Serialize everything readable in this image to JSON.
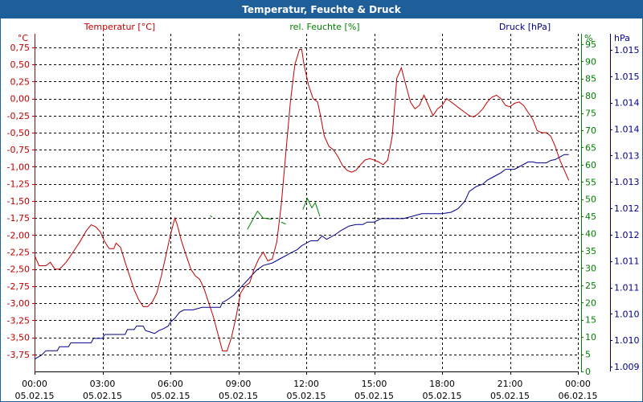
{
  "window": {
    "title": "Temperatur, Feuchte & Druck"
  },
  "chart_data": {
    "type": "line",
    "title": "Temperatur, Feuchte & Druck",
    "colors": {
      "temperature": "#c00000",
      "humidity": "#008000",
      "pressure": "#00008b",
      "grid": "#000000"
    },
    "series_labels": {
      "temperature": "Temperatur [°C]",
      "humidity": "rel. Feuchte [%]",
      "pressure": "Druck [hPa]"
    },
    "axes": {
      "left": {
        "unit": "°C",
        "min": -4.0,
        "max": 0.95,
        "ticks": [
          "0,75",
          "0,50",
          "0,25",
          "0,00",
          "-0,25",
          "-0,50",
          "-0,75",
          "-1,00",
          "-1,25",
          "-1,50",
          "-1,75",
          "-2,00",
          "-2,25",
          "-2,50",
          "-2,75",
          "-3,00",
          "-3,25",
          "-3,50",
          "-3,75"
        ]
      },
      "middle": {
        "unit": "%",
        "min": 0,
        "max": 98,
        "ticks": [
          "95",
          "90",
          "85",
          "80",
          "75",
          "70",
          "65",
          "60",
          "55",
          "50",
          "45",
          "40",
          "35",
          "30",
          "25",
          "20",
          "15",
          "10",
          "5",
          "0"
        ]
      },
      "right": {
        "unit": "hPa",
        "min": 1008.75,
        "max": 1015.6,
        "ticks": [
          "1.015",
          "1.015",
          "1.014",
          "1.014",
          "1.013",
          "1.013",
          "1.012",
          "1.012",
          "1.011",
          "1.011",
          "1.010",
          "1.010",
          "1.009"
        ]
      },
      "x": {
        "min": 0,
        "max": 24,
        "ticks": [
          {
            "time": "00:00",
            "date": "05.02.15"
          },
          {
            "time": "03:00",
            "date": "05.02.15"
          },
          {
            "time": "06:00",
            "date": "05.02.15"
          },
          {
            "time": "09:00",
            "date": "05.02.15"
          },
          {
            "time": "12:00",
            "date": "05.02.15"
          },
          {
            "time": "15:00",
            "date": "05.02.15"
          },
          {
            "time": "18:00",
            "date": "05.02.15"
          },
          {
            "time": "21:00",
            "date": "05.02.15"
          },
          {
            "time": "00:00",
            "date": "06.02.15"
          }
        ]
      }
    },
    "temperature": [
      [
        0,
        -2.3
      ],
      [
        0.2,
        -2.45
      ],
      [
        0.5,
        -2.45
      ],
      [
        0.7,
        -2.4
      ],
      [
        0.9,
        -2.5
      ],
      [
        1.1,
        -2.5
      ],
      [
        1.4,
        -2.4
      ],
      [
        1.7,
        -2.25
      ],
      [
        2.0,
        -2.1
      ],
      [
        2.3,
        -1.93
      ],
      [
        2.5,
        -1.85
      ],
      [
        2.7,
        -1.88
      ],
      [
        2.9,
        -1.95
      ],
      [
        3.1,
        -2.1
      ],
      [
        3.3,
        -2.2
      ],
      [
        3.5,
        -2.2
      ],
      [
        3.6,
        -2.12
      ],
      [
        3.8,
        -2.18
      ],
      [
        4.0,
        -2.4
      ],
      [
        4.2,
        -2.6
      ],
      [
        4.4,
        -2.8
      ],
      [
        4.6,
        -2.95
      ],
      [
        4.8,
        -3.05
      ],
      [
        5.0,
        -3.05
      ],
      [
        5.2,
        -2.98
      ],
      [
        5.4,
        -2.85
      ],
      [
        5.6,
        -2.6
      ],
      [
        5.8,
        -2.3
      ],
      [
        6.0,
        -2.0
      ],
      [
        6.2,
        -1.75
      ],
      [
        6.3,
        -1.85
      ],
      [
        6.5,
        -2.1
      ],
      [
        6.7,
        -2.3
      ],
      [
        6.9,
        -2.5
      ],
      [
        7.1,
        -2.6
      ],
      [
        7.3,
        -2.65
      ],
      [
        7.5,
        -2.8
      ],
      [
        7.7,
        -3.0
      ],
      [
        7.9,
        -3.2
      ],
      [
        8.1,
        -3.45
      ],
      [
        8.3,
        -3.7
      ],
      [
        8.5,
        -3.7
      ],
      [
        8.7,
        -3.5
      ],
      [
        8.9,
        -3.2
      ],
      [
        9.1,
        -2.85
      ],
      [
        9.3,
        -2.75
      ],
      [
        9.5,
        -2.7
      ],
      [
        9.7,
        -2.5
      ],
      [
        9.9,
        -2.35
      ],
      [
        10.1,
        -2.25
      ],
      [
        10.3,
        -2.38
      ],
      [
        10.5,
        -2.35
      ],
      [
        10.7,
        -2.1
      ],
      [
        10.9,
        -1.55
      ],
      [
        11.1,
        -0.8
      ],
      [
        11.3,
        -0.05
      ],
      [
        11.5,
        0.5
      ],
      [
        11.7,
        0.72
      ],
      [
        11.8,
        0.72
      ],
      [
        11.9,
        0.5
      ],
      [
        12.1,
        0.2
      ],
      [
        12.3,
        0.0
      ],
      [
        12.5,
        -0.05
      ],
      [
        12.6,
        -0.2
      ],
      [
        12.8,
        -0.55
      ],
      [
        13.0,
        -0.7
      ],
      [
        13.2,
        -0.75
      ],
      [
        13.4,
        -0.85
      ],
      [
        13.6,
        -0.98
      ],
      [
        13.8,
        -1.05
      ],
      [
        14.0,
        -1.08
      ],
      [
        14.2,
        -1.05
      ],
      [
        14.4,
        -0.97
      ],
      [
        14.6,
        -0.9
      ],
      [
        14.8,
        -0.88
      ],
      [
        15.0,
        -0.9
      ],
      [
        15.2,
        -0.93
      ],
      [
        15.4,
        -0.97
      ],
      [
        15.6,
        -0.9
      ],
      [
        15.8,
        -0.55
      ],
      [
        16.0,
        0.3
      ],
      [
        16.2,
        0.45
      ],
      [
        16.4,
        0.2
      ],
      [
        16.6,
        -0.05
      ],
      [
        16.8,
        -0.15
      ],
      [
        17.0,
        -0.1
      ],
      [
        17.2,
        0.05
      ],
      [
        17.4,
        -0.1
      ],
      [
        17.6,
        -0.25
      ],
      [
        17.8,
        -0.15
      ],
      [
        18.0,
        -0.1
      ],
      [
        18.2,
        0.0
      ],
      [
        18.4,
        -0.05
      ],
      [
        18.6,
        -0.1
      ],
      [
        18.8,
        -0.15
      ],
      [
        19.0,
        -0.2
      ],
      [
        19.2,
        -0.25
      ],
      [
        19.4,
        -0.27
      ],
      [
        19.6,
        -0.22
      ],
      [
        19.8,
        -0.15
      ],
      [
        20.0,
        -0.05
      ],
      [
        20.2,
        0.02
      ],
      [
        20.4,
        0.05
      ],
      [
        20.6,
        0.0
      ],
      [
        20.8,
        -0.1
      ],
      [
        21.0,
        -0.12
      ],
      [
        21.2,
        -0.07
      ],
      [
        21.4,
        -0.05
      ],
      [
        21.6,
        -0.1
      ],
      [
        21.8,
        -0.2
      ],
      [
        22.0,
        -0.3
      ],
      [
        22.2,
        -0.47
      ],
      [
        22.4,
        -0.5
      ],
      [
        22.6,
        -0.5
      ],
      [
        22.8,
        -0.55
      ],
      [
        23.0,
        -0.7
      ],
      [
        23.2,
        -0.9
      ],
      [
        23.4,
        -1.05
      ],
      [
        23.6,
        -1.2
      ]
    ],
    "humidity_segments": [
      [
        [
          7.75,
          45.2
        ],
        [
          7.85,
          44.8
        ]
      ],
      [
        [
          9.4,
          41.2
        ],
        [
          9.7,
          44.8
        ],
        [
          9.85,
          46.5
        ],
        [
          10.1,
          44.5
        ],
        [
          10.5,
          44.2
        ]
      ],
      [
        [
          10.9,
          43.3
        ],
        [
          11.1,
          42.8
        ]
      ],
      [
        [
          11.85,
          47.0
        ],
        [
          12.05,
          50.2
        ],
        [
          12.25,
          47.5
        ],
        [
          12.4,
          49.0
        ],
        [
          12.6,
          45.0
        ]
      ]
    ],
    "pressure": [
      [
        0,
        1009.0
      ],
      [
        0.3,
        1009.08
      ],
      [
        0.5,
        1009.17
      ],
      [
        1.0,
        1009.17
      ],
      [
        1.1,
        1009.25
      ],
      [
        1.5,
        1009.25
      ],
      [
        1.6,
        1009.33
      ],
      [
        2.5,
        1009.33
      ],
      [
        2.6,
        1009.42
      ],
      [
        3.0,
        1009.42
      ],
      [
        3.1,
        1009.5
      ],
      [
        4.0,
        1009.5
      ],
      [
        4.1,
        1009.6
      ],
      [
        4.4,
        1009.6
      ],
      [
        4.5,
        1009.67
      ],
      [
        4.8,
        1009.67
      ],
      [
        4.9,
        1009.58
      ],
      [
        5.1,
        1009.55
      ],
      [
        5.3,
        1009.52
      ],
      [
        5.5,
        1009.58
      ],
      [
        5.7,
        1009.62
      ],
      [
        5.9,
        1009.67
      ],
      [
        6.0,
        1009.75
      ],
      [
        6.2,
        1009.83
      ],
      [
        6.4,
        1009.95
      ],
      [
        6.6,
        1010.0
      ],
      [
        7.0,
        1010.0
      ],
      [
        7.4,
        1010.05
      ],
      [
        8.2,
        1010.05
      ],
      [
        8.3,
        1010.15
      ],
      [
        8.5,
        1010.2
      ],
      [
        8.8,
        1010.3
      ],
      [
        9.0,
        1010.4
      ],
      [
        9.2,
        1010.5
      ],
      [
        9.4,
        1010.6
      ],
      [
        9.6,
        1010.7
      ],
      [
        9.8,
        1010.8
      ],
      [
        10.1,
        1010.9
      ],
      [
        10.5,
        1010.95
      ],
      [
        10.9,
        1011.05
      ],
      [
        11.3,
        1011.15
      ],
      [
        11.6,
        1011.22
      ],
      [
        11.8,
        1011.3
      ],
      [
        12.0,
        1011.35
      ],
      [
        12.2,
        1011.4
      ],
      [
        12.5,
        1011.4
      ],
      [
        12.7,
        1011.5
      ],
      [
        12.9,
        1011.43
      ],
      [
        13.1,
        1011.48
      ],
      [
        13.3,
        1011.53
      ],
      [
        13.5,
        1011.6
      ],
      [
        13.7,
        1011.65
      ],
      [
        13.9,
        1011.7
      ],
      [
        14.2,
        1011.73
      ],
      [
        14.5,
        1011.73
      ],
      [
        14.7,
        1011.78
      ],
      [
        15.0,
        1011.78
      ],
      [
        15.3,
        1011.85
      ],
      [
        15.6,
        1011.85
      ],
      [
        15.9,
        1011.85
      ],
      [
        16.3,
        1011.85
      ],
      [
        16.7,
        1011.9
      ],
      [
        17.1,
        1011.95
      ],
      [
        17.6,
        1011.95
      ],
      [
        18.0,
        1011.95
      ],
      [
        18.4,
        1011.98
      ],
      [
        18.7,
        1012.05
      ],
      [
        19.0,
        1012.2
      ],
      [
        19.2,
        1012.4
      ],
      [
        19.5,
        1012.5
      ],
      [
        19.8,
        1012.55
      ],
      [
        20.0,
        1012.63
      ],
      [
        20.2,
        1012.68
      ],
      [
        20.4,
        1012.73
      ],
      [
        20.6,
        1012.78
      ],
      [
        20.8,
        1012.85
      ],
      [
        21.0,
        1012.85
      ],
      [
        21.2,
        1012.85
      ],
      [
        21.4,
        1012.9
      ],
      [
        21.6,
        1012.95
      ],
      [
        21.8,
        1013.0
      ],
      [
        22.0,
        1013.0
      ],
      [
        22.2,
        1012.98
      ],
      [
        22.6,
        1012.98
      ],
      [
        22.8,
        1013.03
      ],
      [
        23.0,
        1013.05
      ],
      [
        23.2,
        1013.1
      ],
      [
        23.4,
        1013.15
      ],
      [
        23.6,
        1013.15
      ]
    ]
  }
}
